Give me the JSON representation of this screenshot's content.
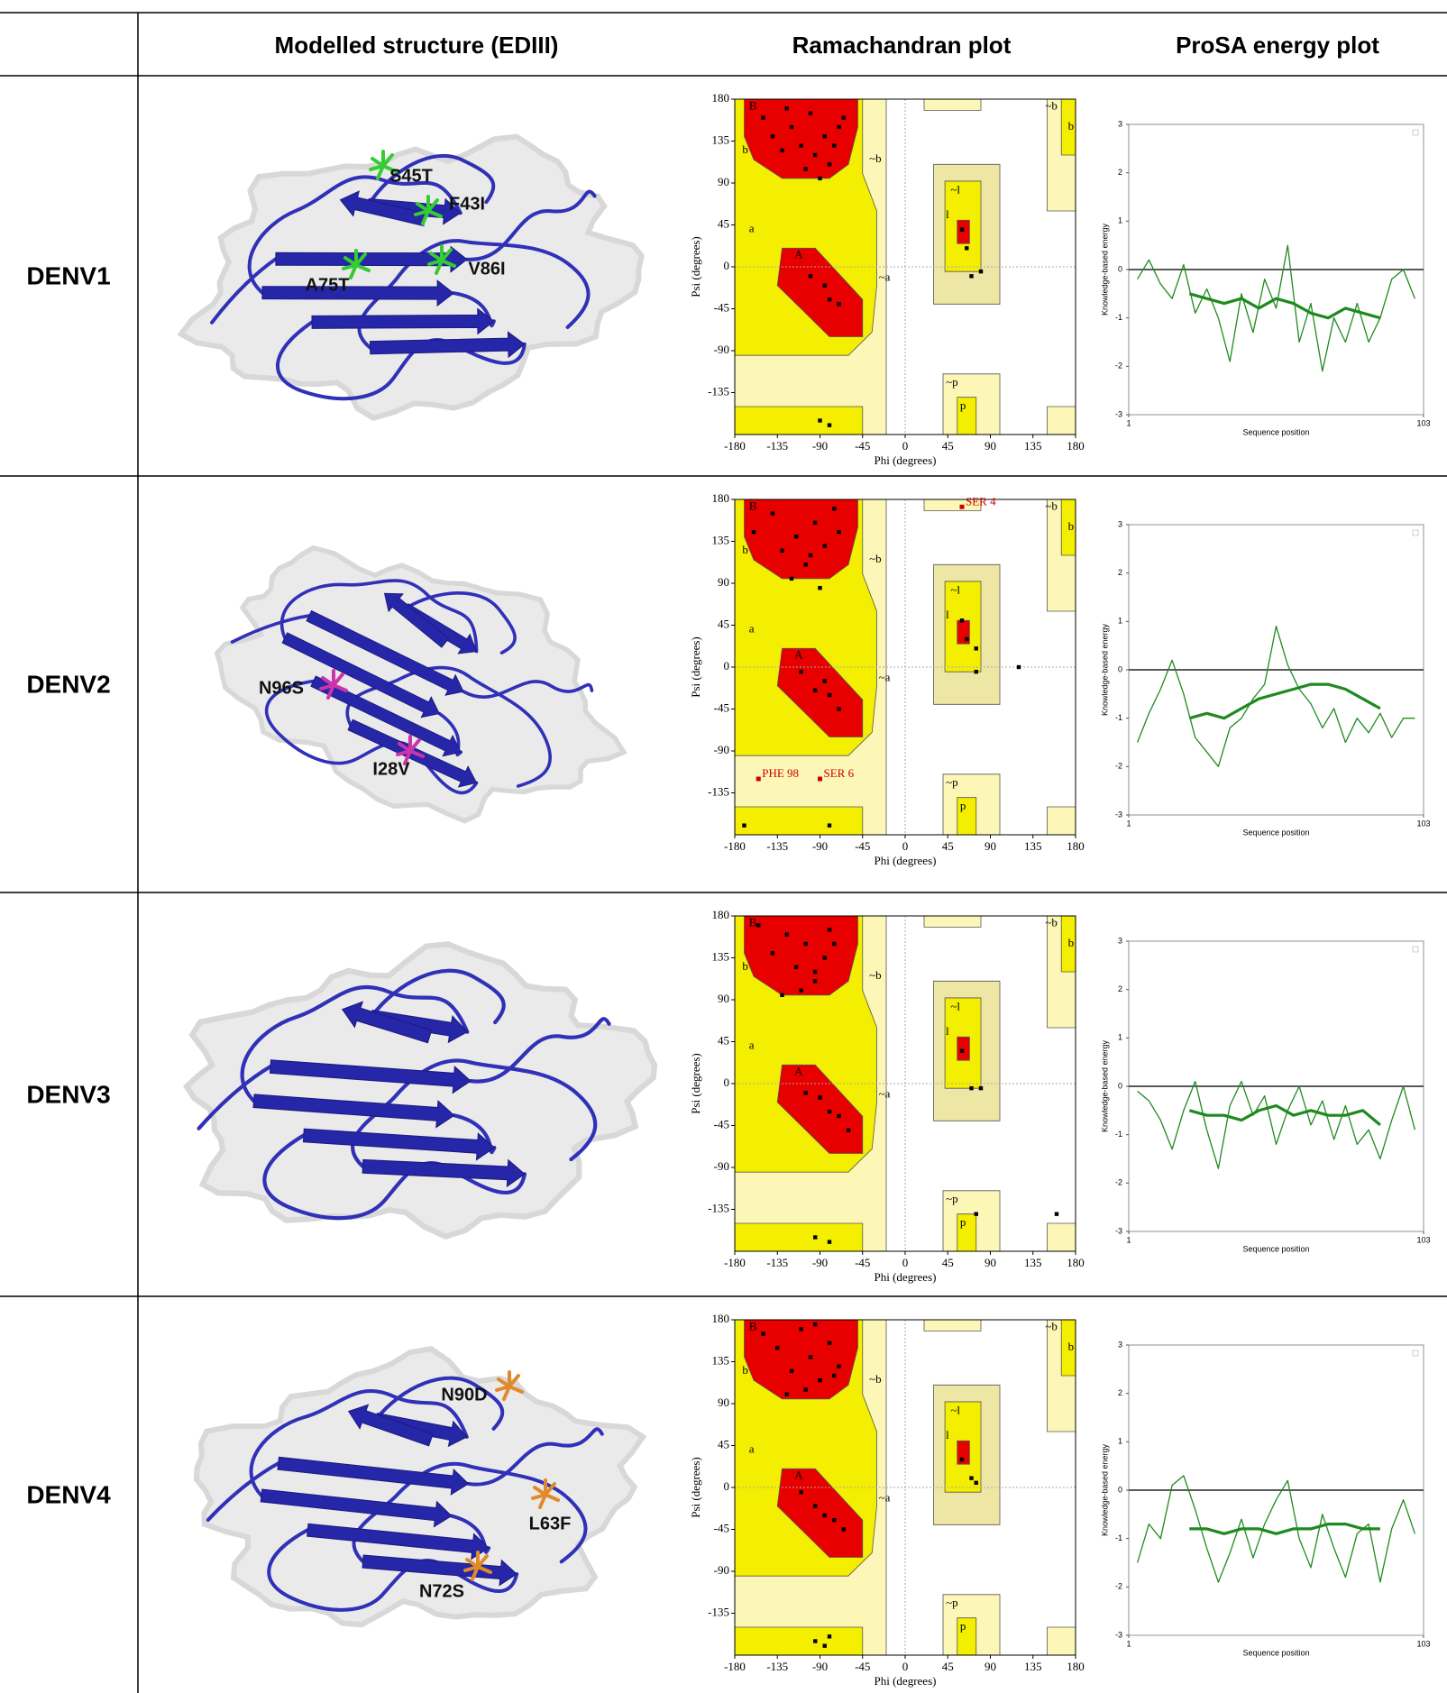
{
  "header": {
    "structure": "Modelled structure (EDIII)",
    "ramachandran": "Ramachandran plot",
    "prosa": "ProSA energy plot"
  },
  "ramachandran": {
    "xlabel": "Phi (degrees)",
    "ylabel": "Psi (degrees)",
    "xlim": [
      -180,
      180
    ],
    "ylim": [
      -180,
      180
    ],
    "xticks": [
      -180,
      -135,
      -90,
      -45,
      0,
      45,
      90,
      135,
      180
    ],
    "yticks": [
      -135,
      -90,
      -45,
      0,
      45,
      90,
      135,
      180
    ],
    "region_labels": [
      "B",
      "b",
      "A",
      "a",
      "~b",
      "~a",
      "~l",
      "l",
      "~p",
      "p",
      "~b",
      "b"
    ]
  },
  "prosa": {
    "xlabel": "Sequence position",
    "ylabel": "Knowledge-based energy",
    "xlim": [
      1,
      103
    ],
    "ylim": [
      -3,
      3
    ],
    "xticks": [
      1,
      103
    ],
    "yticks": [
      -3,
      -2,
      -1,
      0,
      1,
      2,
      3
    ]
  },
  "rows": [
    {
      "label": "DENV1",
      "mutations": [
        "S45T",
        "F43I",
        "V86I",
        "A75T"
      ],
      "mutation_color": "#33cc33",
      "rama_points": {
        "phi": [
          -150,
          -140,
          -130,
          -120,
          -110,
          -100,
          -95,
          -85,
          -80,
          -70,
          -125,
          -105,
          -90,
          -75,
          -65,
          -100,
          -85,
          -80,
          -70,
          60,
          65,
          70,
          80,
          -90,
          -80
        ],
        "psi": [
          160,
          140,
          125,
          150,
          130,
          165,
          120,
          140,
          110,
          150,
          170,
          105,
          95,
          130,
          160,
          -10,
          -20,
          -35,
          -40,
          40,
          20,
          -10,
          -5,
          -165,
          -170
        ]
      },
      "prosa_thin": {
        "x": [
          4,
          8,
          12,
          16,
          20,
          24,
          28,
          32,
          36,
          40,
          44,
          48,
          52,
          56,
          60,
          64,
          68,
          72,
          76,
          80,
          84,
          88,
          92,
          96,
          100
        ],
        "values": [
          -0.2,
          0.2,
          -0.3,
          -0.6,
          0.1,
          -0.9,
          -0.4,
          -1.0,
          -1.9,
          -0.5,
          -1.3,
          -0.2,
          -0.8,
          0.5,
          -1.5,
          -0.7,
          -2.1,
          -1.0,
          -1.5,
          -0.7,
          -1.5,
          -1.0,
          -0.2,
          0.0,
          -0.6
        ]
      },
      "prosa_thick": {
        "x": [
          22,
          28,
          34,
          40,
          46,
          52,
          58,
          64,
          70,
          76,
          82,
          88
        ],
        "values": [
          -0.5,
          -0.6,
          -0.7,
          -0.6,
          -0.8,
          -0.6,
          -0.7,
          -0.9,
          -1.0,
          -0.8,
          -0.9,
          -1.0
        ]
      }
    },
    {
      "label": "DENV2",
      "mutations": [
        "N96S",
        "I28V"
      ],
      "mutation_color": "#cc33aa",
      "rama_points": {
        "phi": [
          -160,
          -140,
          -130,
          -115,
          -105,
          -95,
          -85,
          -75,
          -120,
          -100,
          -90,
          -70,
          -110,
          -95,
          -80,
          -70,
          -85,
          60,
          65,
          75,
          75,
          120,
          -170,
          -80
        ],
        "psi": [
          145,
          165,
          125,
          140,
          110,
          155,
          130,
          170,
          95,
          120,
          85,
          145,
          -5,
          -25,
          -30,
          -45,
          -15,
          50,
          30,
          20,
          -5,
          0,
          -170,
          -170
        ]
      },
      "labeled_points": [
        {
          "label": "SER 4",
          "phi": 60,
          "psi": 172
        },
        {
          "label": "PHE 98",
          "phi": -155,
          "psi": -120
        },
        {
          "label": "SER 6",
          "phi": -90,
          "psi": -120
        }
      ],
      "prosa_thin": {
        "x": [
          4,
          8,
          12,
          16,
          20,
          24,
          28,
          32,
          36,
          40,
          44,
          48,
          52,
          56,
          60,
          64,
          68,
          72,
          76,
          80,
          84,
          88,
          92,
          96,
          100
        ],
        "values": [
          -1.5,
          -0.9,
          -0.4,
          0.2,
          -0.5,
          -1.4,
          -1.7,
          -2.0,
          -1.2,
          -1.0,
          -0.6,
          -0.3,
          0.9,
          0.1,
          -0.4,
          -0.7,
          -1.2,
          -0.8,
          -1.5,
          -1.0,
          -1.3,
          -0.9,
          -1.4,
          -1.0,
          -1.0
        ]
      },
      "prosa_thick": {
        "x": [
          22,
          28,
          34,
          40,
          46,
          52,
          58,
          64,
          70,
          76,
          82,
          88
        ],
        "values": [
          -1.0,
          -0.9,
          -1.0,
          -0.8,
          -0.6,
          -0.5,
          -0.4,
          -0.3,
          -0.3,
          -0.4,
          -0.6,
          -0.8
        ]
      }
    },
    {
      "label": "DENV3",
      "rama_points": {
        "phi": [
          -155,
          -140,
          -125,
          -115,
          -105,
          -95,
          -85,
          -75,
          -130,
          -110,
          -95,
          -80,
          -105,
          -90,
          -80,
          -70,
          -60,
          60,
          70,
          80,
          -95,
          -80,
          75,
          160
        ],
        "psi": [
          170,
          140,
          160,
          125,
          150,
          110,
          135,
          150,
          95,
          100,
          120,
          165,
          -10,
          -15,
          -30,
          -35,
          -50,
          35,
          -5,
          -5,
          -165,
          -170,
          -140,
          -140
        ]
      },
      "prosa_thin": {
        "x": [
          4,
          8,
          12,
          16,
          20,
          24,
          28,
          32,
          36,
          40,
          44,
          48,
          52,
          56,
          60,
          64,
          68,
          72,
          76,
          80,
          84,
          88,
          92,
          96,
          100
        ],
        "values": [
          -0.1,
          -0.3,
          -0.7,
          -1.3,
          -0.5,
          0.1,
          -0.9,
          -1.7,
          -0.4,
          0.1,
          -0.6,
          -0.2,
          -1.2,
          -0.5,
          0.0,
          -0.8,
          -0.3,
          -1.1,
          -0.4,
          -1.2,
          -0.9,
          -1.5,
          -0.7,
          0.0,
          -0.9
        ]
      },
      "prosa_thick": {
        "x": [
          22,
          28,
          34,
          40,
          46,
          52,
          58,
          64,
          70,
          76,
          82,
          88
        ],
        "values": [
          -0.5,
          -0.6,
          -0.6,
          -0.7,
          -0.5,
          -0.4,
          -0.6,
          -0.5,
          -0.6,
          -0.6,
          -0.5,
          -0.8
        ]
      }
    },
    {
      "label": "DENV4",
      "mutations": [
        "N90D",
        "L63F",
        "N72S"
      ],
      "mutation_color": "#e08a2c",
      "rama_points": {
        "phi": [
          -150,
          -135,
          -120,
          -110,
          -100,
          -90,
          -80,
          -70,
          -125,
          -105,
          -95,
          -75,
          -110,
          -95,
          -85,
          -75,
          -65,
          60,
          70,
          75,
          -95,
          -85,
          -80
        ],
        "psi": [
          165,
          150,
          125,
          170,
          140,
          115,
          155,
          130,
          100,
          105,
          175,
          120,
          -5,
          -20,
          -30,
          -35,
          -45,
          30,
          10,
          5,
          -165,
          -170,
          -160
        ]
      },
      "prosa_thin": {
        "x": [
          4,
          8,
          12,
          16,
          20,
          24,
          28,
          32,
          36,
          40,
          44,
          48,
          52,
          56,
          60,
          64,
          68,
          72,
          76,
          80,
          84,
          88,
          92,
          96,
          100
        ],
        "values": [
          -1.5,
          -0.7,
          -1.0,
          0.1,
          0.3,
          -0.4,
          -1.2,
          -1.9,
          -1.3,
          -0.6,
          -1.4,
          -0.7,
          -0.2,
          0.2,
          -1.0,
          -1.6,
          -0.5,
          -1.2,
          -1.8,
          -0.9,
          -0.7,
          -1.9,
          -0.8,
          -0.2,
          -0.9
        ]
      },
      "prosa_thick": {
        "x": [
          22,
          28,
          34,
          40,
          46,
          52,
          58,
          64,
          70,
          76,
          82,
          88
        ],
        "values": [
          -0.8,
          -0.8,
          -0.9,
          -0.8,
          -0.8,
          -0.9,
          -0.8,
          -0.8,
          -0.7,
          -0.7,
          -0.8,
          -0.8
        ]
      }
    }
  ]
}
